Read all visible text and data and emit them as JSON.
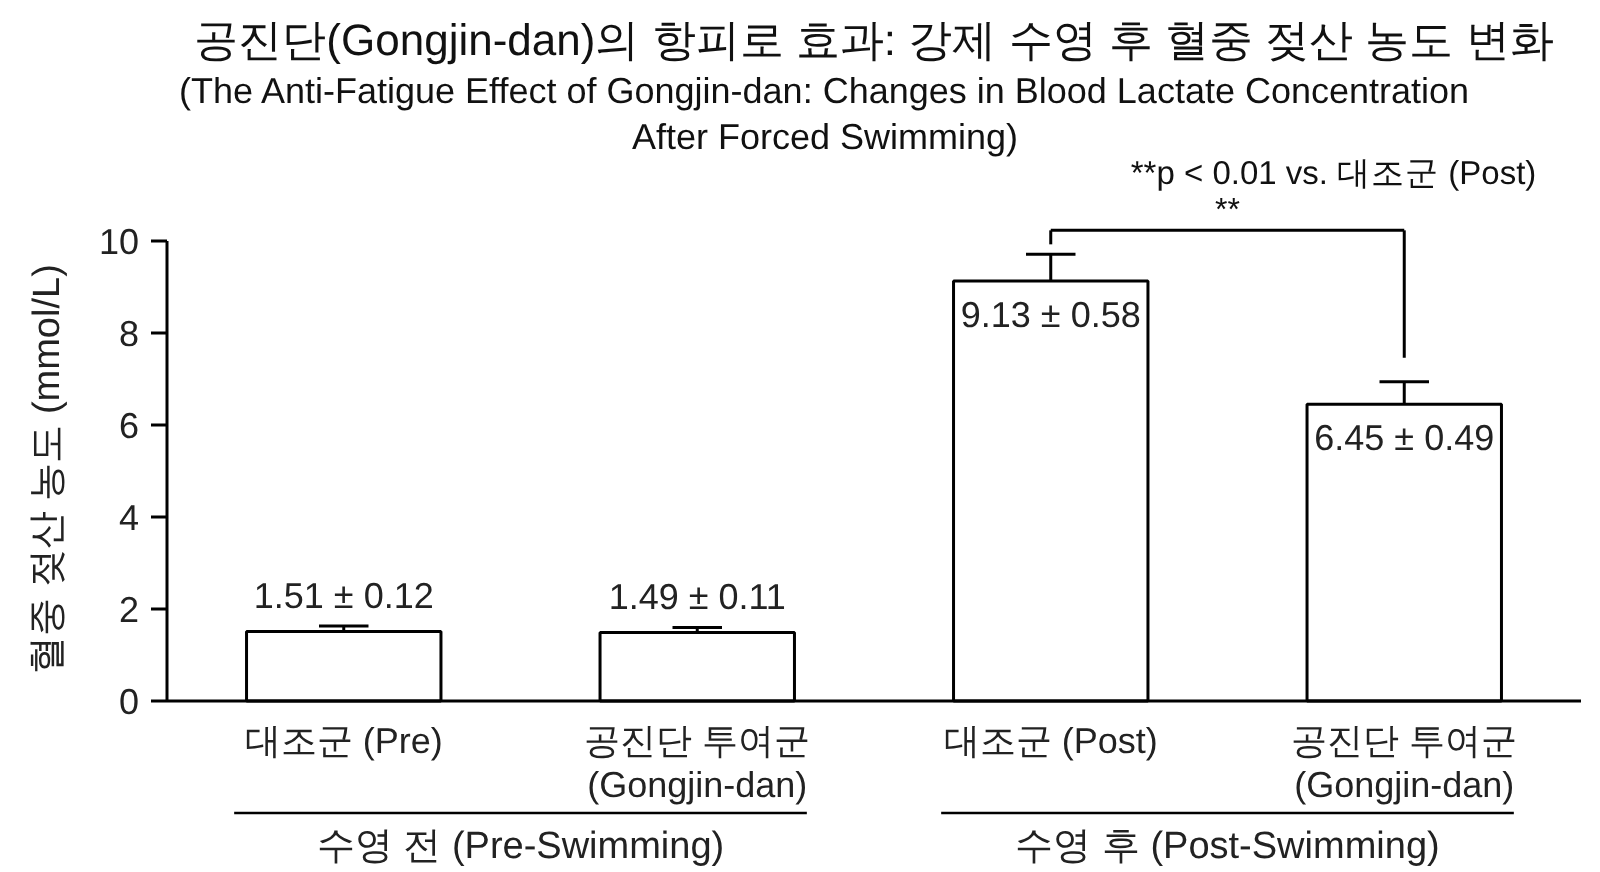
{
  "chart_data": {
    "type": "bar",
    "title": "공진단(Gongjin-dan)의 항피로 효과: 강제 수영 후 혈중 젖산 농도 변화",
    "subtitle": "(The Anti-Fatigue Effect of Gongjin-dan: Changes in Blood Lactate Concentration\nAfter Forced Swimming)",
    "ylabel": "혈중 젖산 농도 (mmol/L)",
    "categories": [
      "대조군 (Pre)",
      "공진단 투여군\n(Gongjin-dan)",
      "대조군 (Post)",
      "공진단 투여군\n(Gongjin-dan)"
    ],
    "values": [
      1.51,
      1.49,
      9.13,
      6.45
    ],
    "color": "#ffffff",
    "errors": [
      [
        1.51,
        1.63
      ],
      [
        1.49,
        1.6
      ],
      [
        9.13,
        9.71
      ],
      [
        6.45,
        6.94
      ]
    ],
    "value_labels": [
      "1.51 ± 0.12",
      "1.49 ± 0.11",
      "9.13 ± 0.58",
      "6.45 ± 0.49"
    ],
    "ylim": [
      0,
      10
    ],
    "yticks": [
      0,
      2,
      4,
      6,
      8,
      10
    ],
    "grid": false,
    "annotations": [
      "**p < 0.01 vs. 대조군 (Post)",
      "**",
      "수영 전 (Pre-Swimming)",
      "수영 후 (Post-Swimming)"
    ]
  }
}
